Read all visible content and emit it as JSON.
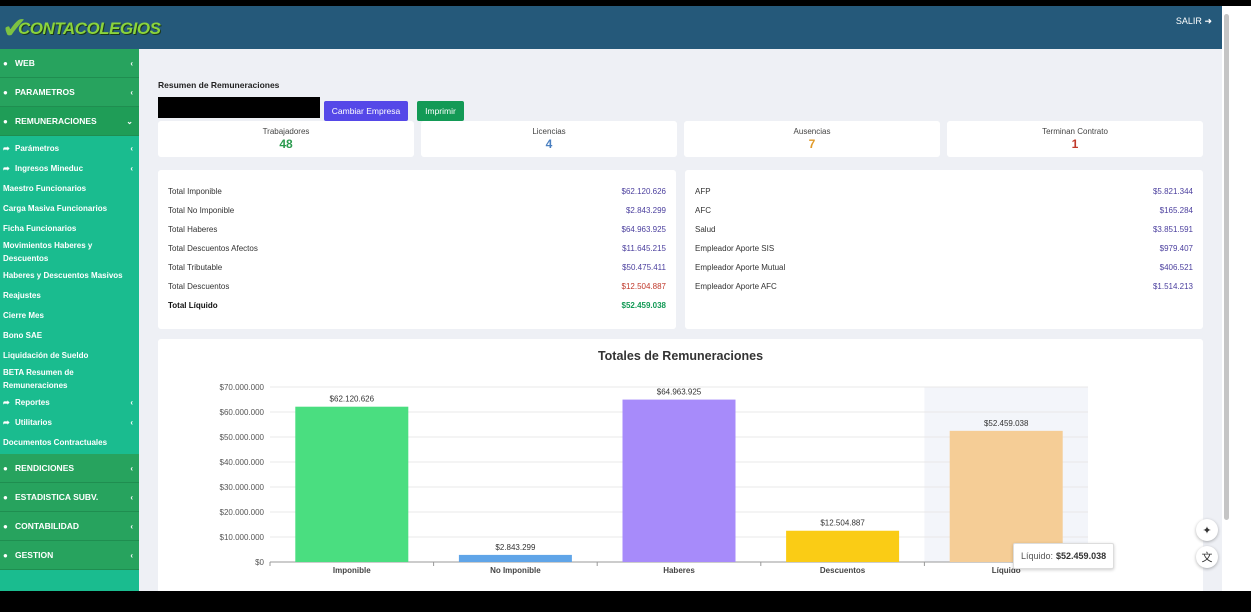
{
  "header": {
    "brand": "CONTACOLEGIOS",
    "logout_label": "SALIR"
  },
  "sidebar": {
    "sections": [
      {
        "label": "WEB"
      },
      {
        "label": "PARAMETROS"
      },
      {
        "label": "REMUNERACIONES"
      }
    ],
    "submenu": [
      {
        "label": "Parámetros"
      },
      {
        "label": "Ingresos Mineduc"
      }
    ],
    "links": [
      "Maestro Funcionarios",
      "Carga Masiva Funcionarios",
      "Ficha Funcionarios",
      "Movimientos Haberes y Descuentos",
      "Haberes y Descuentos Masivos",
      "Reajustes",
      "Cierre Mes",
      "Bono SAE",
      "Liquidación de Sueldo",
      "BETA Resumen de Remuneraciones"
    ],
    "submenu2": [
      {
        "label": "Reportes"
      },
      {
        "label": "Utilitarios"
      }
    ],
    "extra_link": "Documentos Contractuales",
    "bottom_sections": [
      {
        "label": "RENDICIONES"
      },
      {
        "label": "ESTADISTICA SUBV."
      },
      {
        "label": "CONTABILIDAD"
      },
      {
        "label": "GESTION"
      }
    ]
  },
  "page": {
    "title": "Resumen de Remuneraciones",
    "change_company_label": "Cambiar Empresa",
    "print_label": "Imprimir"
  },
  "stats": [
    {
      "label": "Trabajadores",
      "value": "48",
      "color": "#2c9b4f"
    },
    {
      "label": "Licencias",
      "value": "4",
      "color": "#4a7fc0"
    },
    {
      "label": "Ausencias",
      "value": "7",
      "color": "#e09a2a"
    },
    {
      "label": "Terminan Contrato",
      "value": "1",
      "color": "#c0392b"
    }
  ],
  "totals": [
    {
      "label": "Total Imponible",
      "value": "$62.120.626"
    },
    {
      "label": "Total No Imponible",
      "value": "$2.843.299"
    },
    {
      "label": "Total Haberes",
      "value": "$64.963.925"
    },
    {
      "label": "Total Descuentos Afectos",
      "value": "$11.645.215"
    },
    {
      "label": "Total Tributable",
      "value": "$50.475.411"
    },
    {
      "label": "Total Descuentos",
      "value": "$12.504.887"
    },
    {
      "label": "Total Líquido",
      "value": "$52.459.038"
    }
  ],
  "contributions": [
    {
      "label": "AFP",
      "value": "$5.821.344"
    },
    {
      "label": "AFC",
      "value": "$165.284"
    },
    {
      "label": "Salud",
      "value": "$3.851.591"
    },
    {
      "label": "Empleador Aporte SIS",
      "value": "$979.407"
    },
    {
      "label": "Empleador Aporte Mutual",
      "value": "$406.521"
    },
    {
      "label": "Empleador Aporte AFC",
      "value": "$1.514.213"
    }
  ],
  "chart_data": {
    "type": "bar",
    "title": "Totales de Remuneraciones",
    "categories": [
      "Imponible",
      "No Imponible",
      "Haberes",
      "Descuentos",
      "Líquido"
    ],
    "values": [
      62120626,
      2843299,
      64963925,
      12504887,
      52459038
    ],
    "value_labels": [
      "$62.120.626",
      "$2.843.299",
      "$64.963.925",
      "$12.504.887",
      "$52.459.038"
    ],
    "colors": [
      "#4ade80",
      "#60a5e8",
      "#a78bfa",
      "#facc15",
      "#f5cd96"
    ],
    "ylim": [
      0,
      70000000
    ],
    "yticks": [
      0,
      10000000,
      20000000,
      30000000,
      40000000,
      50000000,
      60000000,
      70000000
    ],
    "ytick_labels": [
      "$0",
      "$10.000.000",
      "$20.000.000",
      "$30.000.000",
      "$40.000.000",
      "$50.000.000",
      "$60.000.000",
      "$70.000.000"
    ],
    "grid": true,
    "highlight_index": 4
  },
  "tooltip": {
    "label": "Líquido:",
    "value": "$52.459.038"
  }
}
